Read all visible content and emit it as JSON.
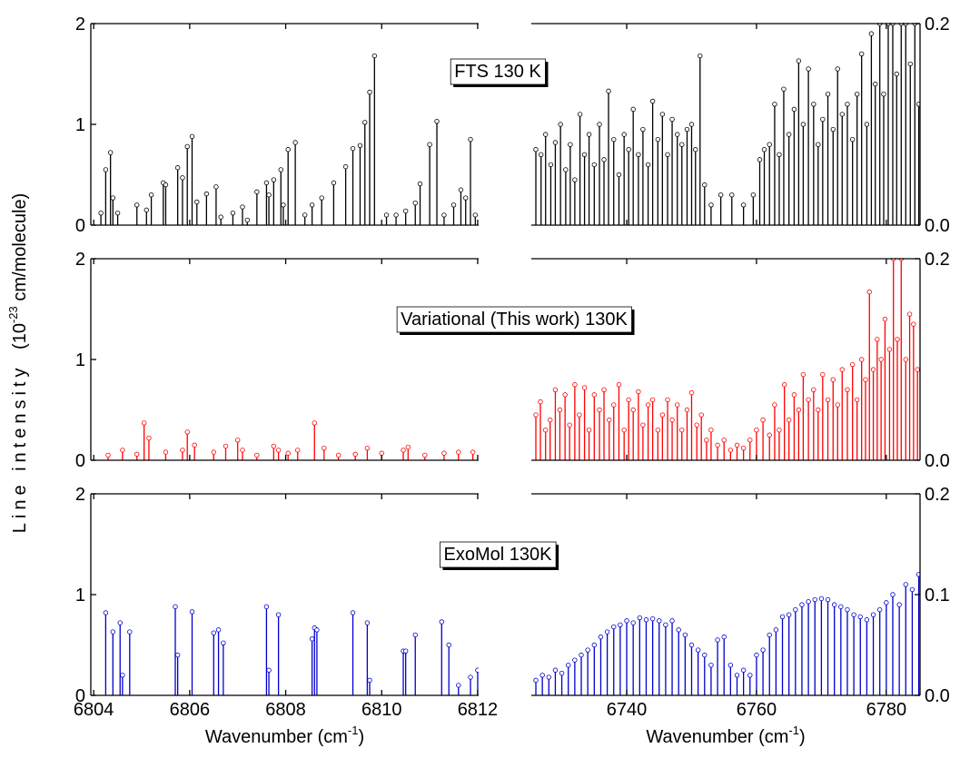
{
  "shared": {
    "ylabel": "Line intensity",
    "ylabel_unit_start": "(10",
    "ylabel_exponent": "-23",
    "ylabel_unit_end": " cm/molecule)"
  },
  "chart_data": [
    {
      "type": "stem",
      "color": "#000000",
      "annotation": "FTS 130 K",
      "annotation_color": "#000000",
      "xlim": [
        6803.94,
        6812.02
      ],
      "ylim": [
        0,
        2
      ],
      "xticks": [
        6804,
        6806,
        6808,
        6810,
        6812
      ],
      "yticks": [
        0,
        1,
        2
      ],
      "x": [
        6804.15,
        6804.25,
        6804.35,
        6804.4,
        6804.5,
        6804.9,
        6805.1,
        6805.2,
        6805.45,
        6805.5,
        6805.75,
        6805.85,
        6805.95,
        6806.05,
        6806.15,
        6806.35,
        6806.55,
        6806.65,
        6806.9,
        6807.1,
        6807.2,
        6807.4,
        6807.6,
        6807.65,
        6807.75,
        6807.9,
        6807.95,
        6808.05,
        6808.2,
        6808.4,
        6808.55,
        6808.75,
        6809.0,
        6809.25,
        6809.4,
        6809.55,
        6809.65,
        6809.75,
        6809.85,
        6810.1,
        6810.3,
        6810.5,
        6810.7,
        6810.8,
        6811.0,
        6811.15,
        6811.3,
        6811.5,
        6811.65,
        6811.75,
        6811.85,
        6811.95
      ],
      "values": [
        0.12,
        0.55,
        0.72,
        0.27,
        0.12,
        0.2,
        0.15,
        0.3,
        0.42,
        0.4,
        0.57,
        0.47,
        0.78,
        0.88,
        0.23,
        0.31,
        0.38,
        0.08,
        0.12,
        0.18,
        0.05,
        0.33,
        0.42,
        0.3,
        0.45,
        0.55,
        0.2,
        0.75,
        0.82,
        0.1,
        0.2,
        0.27,
        0.42,
        0.58,
        0.76,
        0.79,
        1.02,
        1.32,
        1.68,
        0.1,
        0.1,
        0.14,
        0.22,
        0.41,
        0.8,
        1.03,
        0.1,
        0.2,
        0.35,
        0.27,
        0.85,
        0.1
      ]
    },
    {
      "type": "stem",
      "color": "#000000",
      "xlim": [
        6725.3,
        6785.2
      ],
      "ylim": [
        0,
        0.2
      ],
      "xticks": [
        6740,
        6760,
        6780
      ],
      "yticks": [
        {
          "value": 0,
          "label": "0.0"
        },
        0.2
      ],
      "x": [
        6726,
        6726.8,
        6727.5,
        6728.3,
        6729,
        6729.8,
        6730.6,
        6731.3,
        6732,
        6732.8,
        6733.5,
        6734.2,
        6735,
        6735.8,
        6736.5,
        6737.2,
        6738,
        6738.8,
        6739.6,
        6740.3,
        6741,
        6741.8,
        6742.5,
        6743.3,
        6744,
        6744.8,
        6745.5,
        6746.3,
        6747,
        6747.8,
        6748.5,
        6749.3,
        6750,
        6750.6,
        6751.3,
        6752,
        6753,
        6754.5,
        6756.2,
        6758,
        6759.5,
        6760.5,
        6761.2,
        6762,
        6762.8,
        6763.5,
        6764.2,
        6765,
        6765.8,
        6766.5,
        6767.2,
        6768,
        6768.8,
        6769.5,
        6770.2,
        6771,
        6771.8,
        6772.5,
        6773.2,
        6774,
        6774.8,
        6775.5,
        6776.2,
        6777,
        6777.7,
        6778.3,
        6779,
        6779.6,
        6780.3,
        6781,
        6781.6,
        6782.3,
        6783,
        6783.7,
        6784.4,
        6785
      ],
      "values": [
        0.075,
        0.07,
        0.09,
        0.06,
        0.082,
        0.1,
        0.055,
        0.08,
        0.045,
        0.11,
        0.07,
        0.09,
        0.06,
        0.1,
        0.065,
        0.133,
        0.085,
        0.05,
        0.09,
        0.075,
        0.115,
        0.07,
        0.095,
        0.06,
        0.123,
        0.085,
        0.11,
        0.07,
        0.105,
        0.09,
        0.08,
        0.095,
        0.1,
        0.075,
        0.168,
        0.04,
        0.02,
        0.03,
        0.03,
        0.02,
        0.03,
        0.065,
        0.075,
        0.08,
        0.12,
        0.07,
        0.135,
        0.09,
        0.115,
        0.163,
        0.1,
        0.155,
        0.12,
        0.08,
        0.105,
        0.13,
        0.095,
        0.155,
        0.11,
        0.12,
        0.085,
        0.13,
        0.17,
        0.1,
        0.19,
        0.14,
        0.2,
        0.13,
        0.2,
        0.2,
        0.15,
        0.2,
        0.2,
        0.16,
        0.2,
        0.12
      ]
    },
    {
      "type": "stem",
      "color": "#ff0000",
      "annotation": "Variational (This work) 130K",
      "annotation_color": "#ff0000",
      "xlim": [
        6803.94,
        6812.02
      ],
      "ylim": [
        0,
        2
      ],
      "xticks": [
        6804,
        6806,
        6808,
        6810,
        6812
      ],
      "yticks": [
        0,
        1,
        2
      ],
      "x": [
        6804.3,
        6804.6,
        6804.9,
        6805.05,
        6805.15,
        6805.5,
        6805.85,
        6805.95,
        6806.1,
        6806.5,
        6806.75,
        6807.0,
        6807.1,
        6807.4,
        6807.75,
        6807.85,
        6808.05,
        6808.25,
        6808.6,
        6808.8,
        6809.1,
        6809.45,
        6809.7,
        6810.0,
        6810.45,
        6810.55,
        6810.9,
        6811.3,
        6811.6,
        6811.9
      ],
      "values": [
        0.05,
        0.1,
        0.06,
        0.37,
        0.22,
        0.08,
        0.1,
        0.28,
        0.15,
        0.08,
        0.14,
        0.2,
        0.1,
        0.05,
        0.14,
        0.1,
        0.07,
        0.1,
        0.37,
        0.12,
        0.05,
        0.06,
        0.12,
        0.07,
        0.1,
        0.13,
        0.05,
        0.07,
        0.08,
        0.08
      ]
    },
    {
      "type": "stem",
      "color": "#ff0000",
      "xlim": [
        6725.3,
        6785.2
      ],
      "ylim": [
        0,
        0.2
      ],
      "xticks": [
        6740,
        6760,
        6780
      ],
      "yticks": [
        {
          "value": 0,
          "label": "0.0"
        },
        0.2
      ],
      "x": [
        6726,
        6726.7,
        6727.5,
        6728.2,
        6729,
        6729.7,
        6730.5,
        6731.2,
        6732,
        6732.7,
        6733.5,
        6734.2,
        6735,
        6735.8,
        6736.5,
        6737.3,
        6738,
        6738.8,
        6739.6,
        6740.3,
        6741,
        6741.8,
        6742.5,
        6743.3,
        6744,
        6744.8,
        6745.5,
        6746.3,
        6747,
        6747.8,
        6748.5,
        6749.3,
        6750,
        6750.8,
        6751.5,
        6752.3,
        6753,
        6754,
        6755,
        6756,
        6757,
        6758,
        6759,
        6760,
        6761,
        6762,
        6762.8,
        6763.5,
        6764.3,
        6765,
        6765.8,
        6766.5,
        6767.2,
        6768,
        6768.8,
        6769.5,
        6770.2,
        6771,
        6771.8,
        6772.5,
        6773.2,
        6774,
        6774.8,
        6775.5,
        6776.2,
        6776.8,
        6777.4,
        6778,
        6778.6,
        6779.2,
        6779.8,
        6780.5,
        6781.1,
        6781.7,
        6782.3,
        6783,
        6783.6,
        6784.2,
        6784.8
      ],
      "values": [
        0.045,
        0.058,
        0.03,
        0.04,
        0.07,
        0.05,
        0.065,
        0.035,
        0.075,
        0.045,
        0.072,
        0.03,
        0.065,
        0.05,
        0.07,
        0.04,
        0.055,
        0.075,
        0.03,
        0.06,
        0.05,
        0.068,
        0.035,
        0.055,
        0.06,
        0.03,
        0.045,
        0.06,
        0.04,
        0.055,
        0.03,
        0.05,
        0.067,
        0.035,
        0.045,
        0.02,
        0.03,
        0.015,
        0.02,
        0.01,
        0.015,
        0.012,
        0.02,
        0.03,
        0.04,
        0.025,
        0.055,
        0.03,
        0.075,
        0.04,
        0.065,
        0.05,
        0.085,
        0.06,
        0.07,
        0.05,
        0.085,
        0.06,
        0.08,
        0.055,
        0.09,
        0.07,
        0.095,
        0.06,
        0.1,
        0.08,
        0.167,
        0.09,
        0.12,
        0.1,
        0.14,
        0.11,
        0.2,
        0.12,
        0.2,
        0.1,
        0.145,
        0.135,
        0.09
      ]
    },
    {
      "type": "stem",
      "color": "#0000cc",
      "annotation": "ExoMol 130K",
      "annotation_color": "#000000",
      "xlabel": "Wavenumber (cm",
      "xlabel_exponent": "-1",
      "xlabel_end": ")",
      "xlim": [
        6803.94,
        6812.02
      ],
      "ylim": [
        0,
        2
      ],
      "xticks": [
        6804,
        6806,
        6808,
        6810,
        6812
      ],
      "yticks": [
        0,
        1,
        2
      ],
      "x": [
        6804.25,
        6804.4,
        6804.55,
        6804.6,
        6804.75,
        6805.7,
        6805.75,
        6806.05,
        6806.5,
        6806.6,
        6806.7,
        6807.6,
        6807.65,
        6807.85,
        6808.55,
        6808.6,
        6808.65,
        6809.4,
        6809.7,
        6809.75,
        6810.45,
        6810.5,
        6810.7,
        6811.25,
        6811.4,
        6811.6,
        6811.85,
        6812.0
      ],
      "values": [
        0.82,
        0.63,
        0.72,
        0.2,
        0.63,
        0.88,
        0.4,
        0.83,
        0.62,
        0.65,
        0.52,
        0.88,
        0.25,
        0.8,
        0.56,
        0.67,
        0.65,
        0.82,
        0.72,
        0.15,
        0.44,
        0.44,
        0.6,
        0.73,
        0.5,
        0.1,
        0.18,
        0.25
      ]
    },
    {
      "type": "stem",
      "color": "#0000cc",
      "xlabel": "Wavenumber (cm",
      "xlabel_exponent": "-1",
      "xlabel_end": ")",
      "xlim": [
        6725.3,
        6785.2
      ],
      "ylim": [
        0,
        0.2
      ],
      "xticks": [
        6740,
        6760,
        6780
      ],
      "yticks": [
        {
          "value": 0,
          "label": "0.0"
        },
        0.1,
        0.2
      ],
      "x": [
        6726,
        6727,
        6728,
        6729,
        6730,
        6731,
        6732,
        6733,
        6734,
        6735,
        6736,
        6737,
        6738,
        6739,
        6740,
        6741,
        6742,
        6743,
        6744,
        6745,
        6746,
        6747,
        6748,
        6749,
        6750,
        6751,
        6752,
        6753,
        6754,
        6755,
        6756,
        6757,
        6758,
        6759,
        6760,
        6761,
        6762,
        6763,
        6764,
        6765,
        6766,
        6767,
        6768,
        6769,
        6770,
        6771,
        6772,
        6773,
        6774,
        6775,
        6776,
        6777,
        6778,
        6779,
        6780,
        6781,
        6782,
        6783,
        6784,
        6785
      ],
      "values": [
        0.015,
        0.02,
        0.018,
        0.025,
        0.022,
        0.03,
        0.035,
        0.04,
        0.045,
        0.05,
        0.058,
        0.063,
        0.068,
        0.07,
        0.074,
        0.072,
        0.077,
        0.075,
        0.076,
        0.074,
        0.07,
        0.074,
        0.065,
        0.06,
        0.05,
        0.045,
        0.04,
        0.03,
        0.055,
        0.058,
        0.03,
        0.02,
        0.025,
        0.02,
        0.04,
        0.045,
        0.06,
        0.065,
        0.078,
        0.08,
        0.085,
        0.09,
        0.093,
        0.095,
        0.096,
        0.095,
        0.09,
        0.088,
        0.085,
        0.08,
        0.078,
        0.075,
        0.08,
        0.085,
        0.092,
        0.1,
        0.09,
        0.11,
        0.105,
        0.12
      ]
    }
  ]
}
